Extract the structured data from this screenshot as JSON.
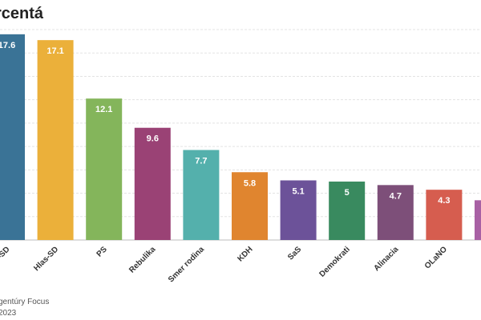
{
  "chart_data": {
    "type": "bar",
    "title": "rcentá",
    "categories": [
      "-SD",
      "Hlas-SD",
      "PS",
      "Rebulika",
      "Smer rodina",
      "KDH",
      "SaS",
      "Demokrati",
      "Alinacia",
      "OLaNO",
      ""
    ],
    "values": [
      17.6,
      17.1,
      12.1,
      9.6,
      7.7,
      5.8,
      5.1,
      5,
      4.7,
      4.3,
      3.4
    ],
    "value_labels": [
      "17.6",
      "17.1",
      "12.1",
      "9.6",
      "7.7",
      "5.8",
      "5.1",
      "5",
      "4.7",
      "4.3",
      ""
    ],
    "colors": [
      "#3a7396",
      "#ebb03a",
      "#84b55b",
      "#9a4275",
      "#54b0ac",
      "#e0852f",
      "#6c5299",
      "#398a5f",
      "#7d4f79",
      "#d65d4f",
      "#a860a4"
    ],
    "ylim": [
      0,
      18
    ],
    "grid": true,
    "xlabel": "",
    "ylabel": ""
  },
  "footer": {
    "source": "gentúry Focus",
    "date": "2023"
  }
}
